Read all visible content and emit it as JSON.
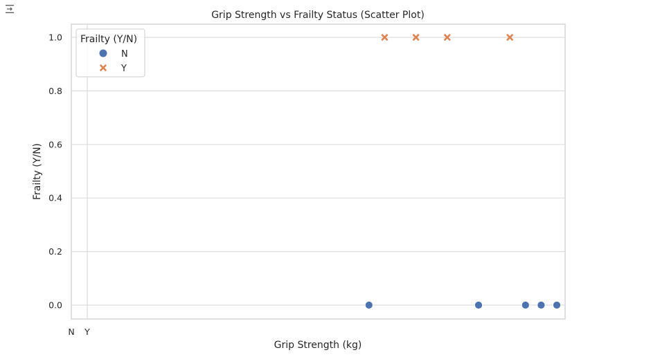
{
  "chart_data": {
    "type": "scatter",
    "title": "Grip Strength vs Frailty Status (Scatter Plot)",
    "xlabel": "Grip Strength (kg)",
    "ylabel": "Frailty (Y/N)",
    "x_ticks": [
      "N",
      "Y"
    ],
    "y_ticks": [
      "0.0",
      "0.2",
      "0.4",
      "0.6",
      "0.8",
      "1.0"
    ],
    "ylim": [
      -0.05,
      1.05
    ],
    "grid": true,
    "legend": {
      "title": "Frailty (Y/N)",
      "placement": "top-left",
      "entries": [
        {
          "label": "N",
          "marker": "circle",
          "color": "#4c72b0"
        },
        {
          "label": "Y",
          "marker": "x",
          "color": "#dd8452"
        }
      ]
    },
    "series": [
      {
        "name": "N",
        "marker": "circle",
        "color": "#4c72b0",
        "points": [
          {
            "x": 18,
            "y": 0
          },
          {
            "x": 25,
            "y": 0
          },
          {
            "x": 28,
            "y": 0
          },
          {
            "x": 29,
            "y": 0
          },
          {
            "x": 30,
            "y": 0
          }
        ]
      },
      {
        "name": "Y",
        "marker": "x",
        "color": "#dd8452",
        "points": [
          {
            "x": 19,
            "y": 1
          },
          {
            "x": 21,
            "y": 1
          },
          {
            "x": 23,
            "y": 1
          },
          {
            "x": 27,
            "y": 1
          }
        ]
      }
    ]
  }
}
